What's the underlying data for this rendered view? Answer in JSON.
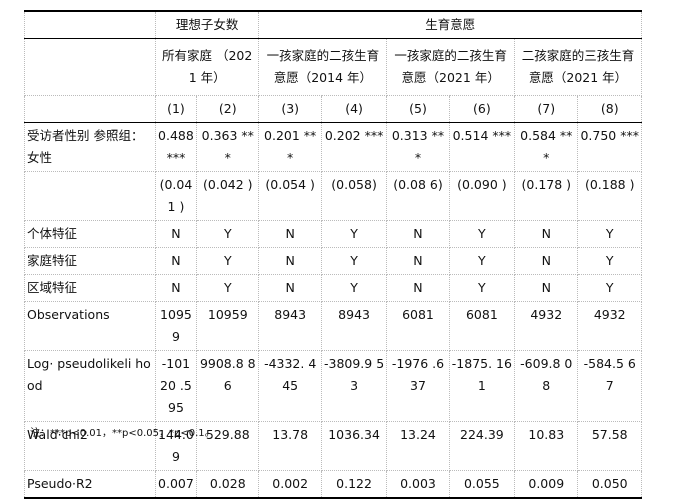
{
  "header": {
    "group_row": [
      {
        "text": "理想子女数",
        "span": 2
      },
      {
        "text": "生育意愿",
        "span": 6
      }
    ],
    "sub_row": [
      {
        "text": "所有家庭 （2021 年）",
        "span": 2
      },
      {
        "text": "一孩家庭的二孩生育意愿（2014 年）",
        "span": 2
      },
      {
        "text": "一孩家庭的二孩生育意愿（2021 年）",
        "span": 2
      },
      {
        "text": "二孩家庭的三孩生育意愿（2021 年）",
        "span": 2
      }
    ],
    "numbers": [
      "(1)",
      "(2)",
      "(3)",
      "(4)",
      "(5)",
      "(6)",
      "(7)",
      "(8)"
    ]
  },
  "table": {
    "rows": [
      [
        "受访者性别 参照组：女性",
        "0.488 ***",
        "0.363 ***",
        "0.201 ***",
        "0.202 ***",
        "0.313 ***",
        "0.514 ***",
        "0.584 ***",
        "0.750 ***"
      ],
      [
        "",
        "(0.041 )",
        "(0.042 )",
        "(0.054 )",
        "(0.058)",
        "(0.08 6)",
        "(0.090 )",
        "(0.178 )",
        "(0.188 )"
      ],
      [
        "个体特征",
        "N",
        "Y",
        "N",
        "Y",
        "N",
        "Y",
        "N",
        "Y"
      ],
      [
        "家庭特征",
        "N",
        "Y",
        "N",
        "Y",
        "N",
        "Y",
        "N",
        "Y"
      ],
      [
        "区域特征",
        "N",
        "Y",
        "N",
        "Y",
        "N",
        "Y",
        "N",
        "Y"
      ],
      [
        "Observations",
        "10959",
        "10959",
        "8943",
        "8943",
        "6081",
        "6081",
        "4932",
        "4932"
      ],
      [
        "Log· pseudolikeli hood",
        "-10120 .595",
        "9908.8 86",
        "-4332. 445",
        "-3809.9 53",
        "-1976 .637",
        "-1875. 161",
        "-609.8 08",
        "-584.5 67"
      ],
      [
        "Wald·chi2",
        "144.09",
        "529.88",
        "13.78",
        "1036.34",
        "13.24",
        "224.39",
        "10.83",
        "57.58"
      ],
      [
        "Pseudo·R2",
        "0.007",
        "0.028",
        "0.002",
        "0.122",
        "0.003",
        "0.055",
        "0.009",
        "0.050"
      ]
    ]
  },
  "note": "注：***p<0.01，**p<0.05，*p<0.1。"
}
